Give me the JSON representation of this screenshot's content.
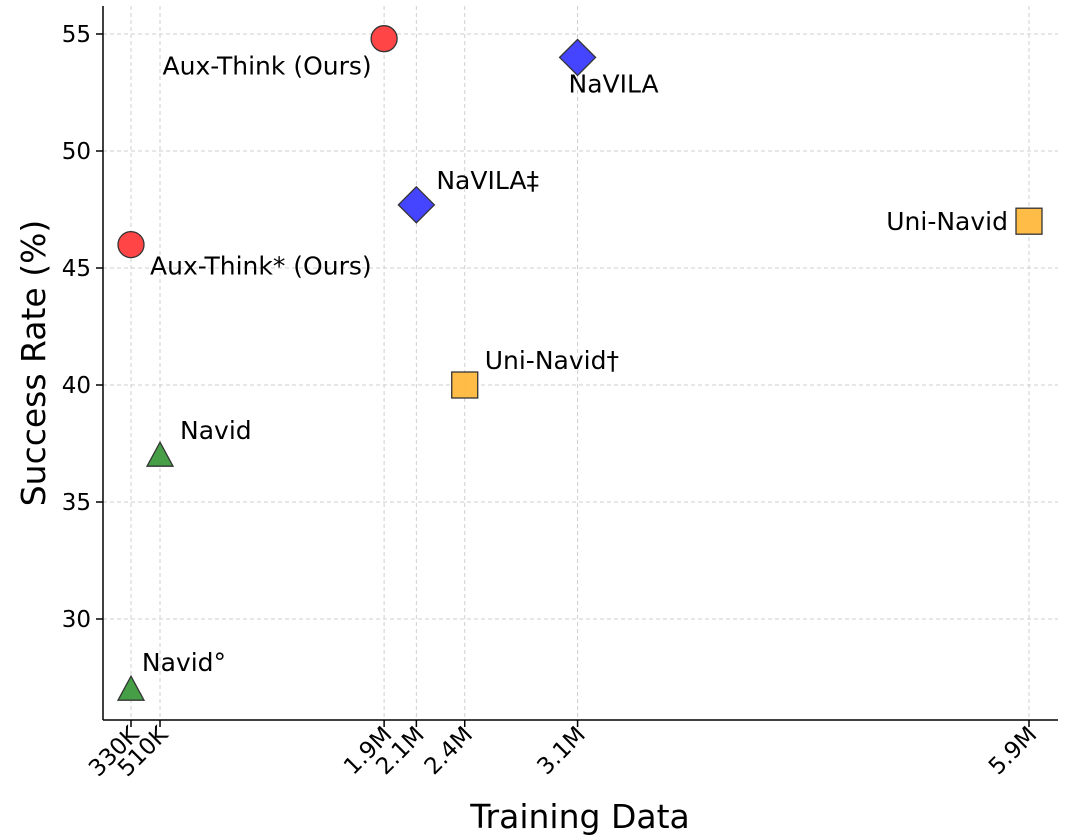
{
  "chart_data": {
    "type": "scatter",
    "title": "",
    "xlabel": "Training Data",
    "ylabel": "Success Rate (%)",
    "xlim": [
      0,
      6.0
    ],
    "ylim": [
      25.8,
      56.3
    ],
    "grid": true,
    "x_ticks": [
      {
        "value": 0.33,
        "label": "330K"
      },
      {
        "value": 0.51,
        "label": "510K"
      },
      {
        "value": 1.9,
        "label": "1.9M"
      },
      {
        "value": 2.1,
        "label": "2.1M"
      },
      {
        "value": 2.4,
        "label": "2.4M"
      },
      {
        "value": 3.1,
        "label": "3.1M"
      },
      {
        "value": 5.9,
        "label": "5.9M"
      }
    ],
    "y_ticks": [
      30,
      35,
      40,
      45,
      50,
      55
    ],
    "points": [
      {
        "label": "Aux-Think (Ours)",
        "x": 1.9,
        "y": 54.8,
        "marker": "circle",
        "color": "#ff3b3b",
        "label_pos": "below-left"
      },
      {
        "label": "NaVILA",
        "x": 3.1,
        "y": 54.0,
        "marker": "diamond",
        "color": "#3b3bff",
        "label_pos": "below"
      },
      {
        "label": "NaVILA‡",
        "x": 2.1,
        "y": 47.7,
        "marker": "diamond",
        "color": "#3b3bff",
        "label_pos": "above-right"
      },
      {
        "label": "Aux-Think* (Ours)",
        "x": 0.33,
        "y": 46.0,
        "marker": "circle",
        "color": "#ff3b3b",
        "label_pos": "below-right"
      },
      {
        "label": "Uni-Navid",
        "x": 5.9,
        "y": 47.0,
        "marker": "square",
        "color": "#ffb83d",
        "label_pos": "left"
      },
      {
        "label": "Uni-Navid†",
        "x": 2.4,
        "y": 40.0,
        "marker": "square",
        "color": "#ffb83d",
        "label_pos": "above-right"
      },
      {
        "label": "Navid",
        "x": 0.51,
        "y": 37.0,
        "marker": "triangle",
        "color": "#3c9a3c",
        "label_pos": "above-right"
      },
      {
        "label": "Navid°",
        "x": 0.33,
        "y": 27.0,
        "marker": "triangle",
        "color": "#3c9a3c",
        "label_pos": "above"
      }
    ]
  }
}
